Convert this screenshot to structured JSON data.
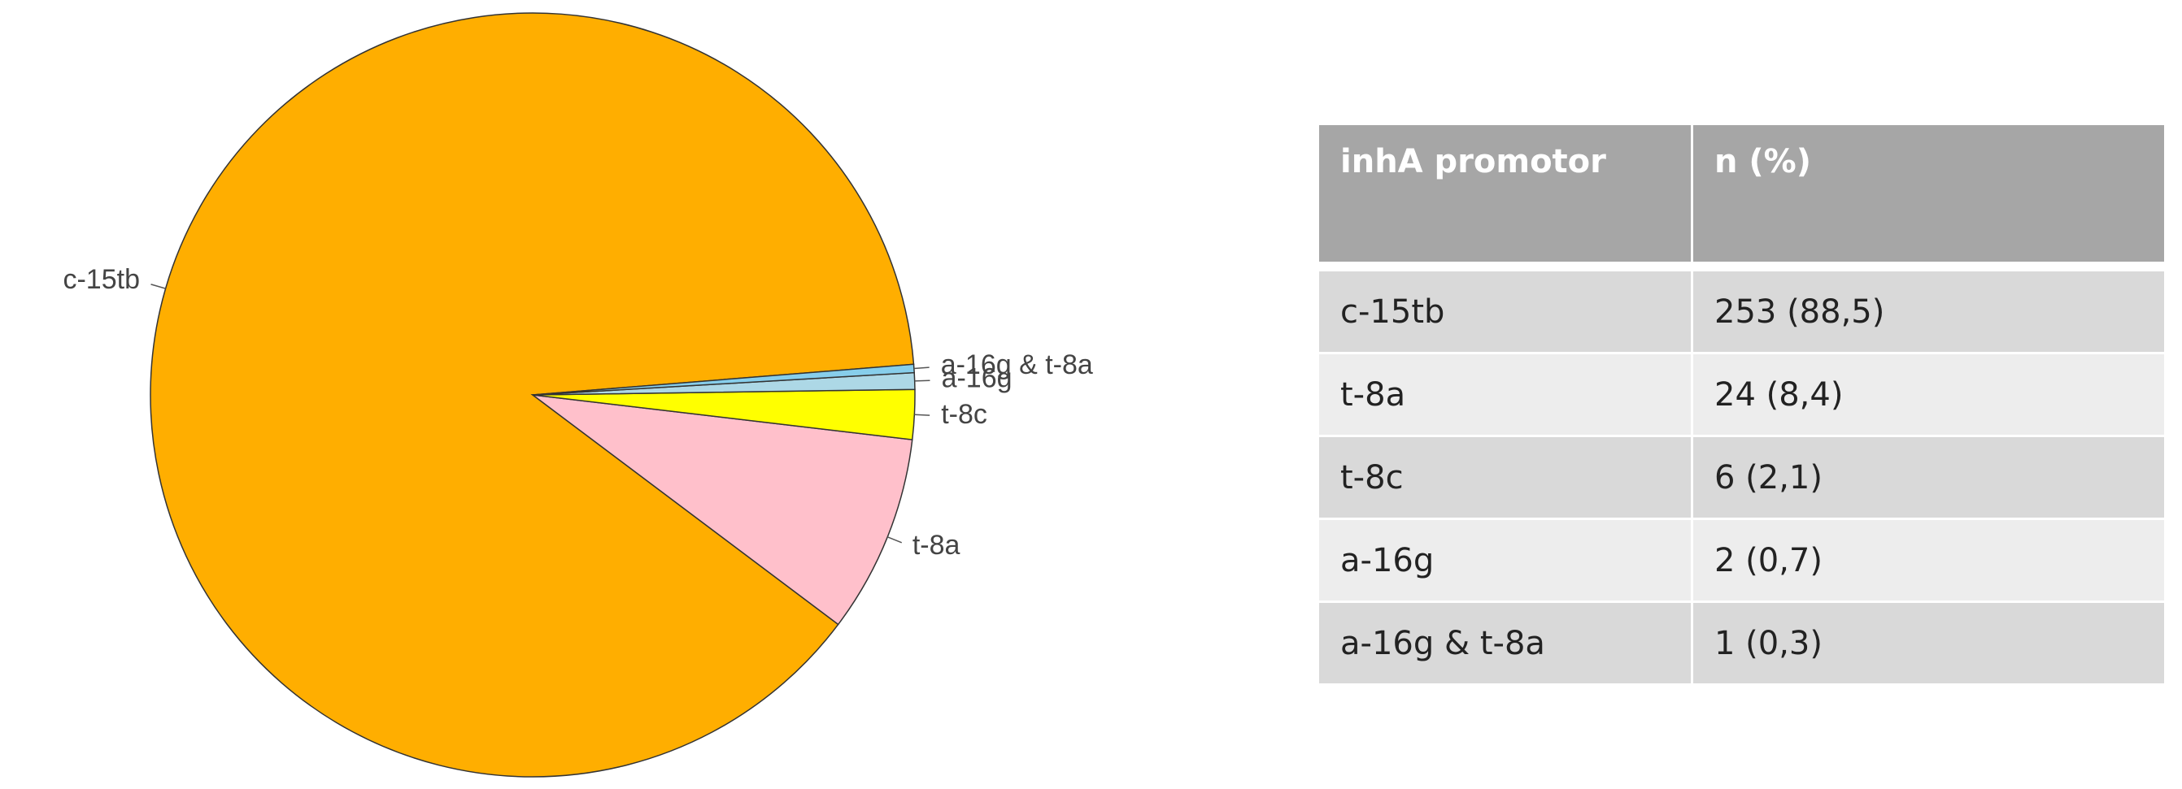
{
  "chart_data": {
    "type": "pie",
    "labels": [
      "c-15tb",
      "t-8a",
      "t-8c",
      "a-16g",
      "a-16g & t-8a"
    ],
    "values": [
      253,
      24,
      6,
      2,
      1
    ],
    "colors": [
      "#ffae00",
      "#ffc0cb",
      "#ffff00",
      "#add8e6",
      "#87ceeb"
    ]
  },
  "table": {
    "header": [
      "inhA promotor",
      "n (%)"
    ],
    "rows": [
      [
        "c-15tb",
        "253 (88,5)"
      ],
      [
        "t-8a",
        "24 (8,4)"
      ],
      [
        "t-8c",
        "6 (2,1)"
      ],
      [
        "a-16g",
        "2 (0,7)"
      ],
      [
        "a-16g & t-8a",
        "1 (0,3)"
      ]
    ]
  }
}
